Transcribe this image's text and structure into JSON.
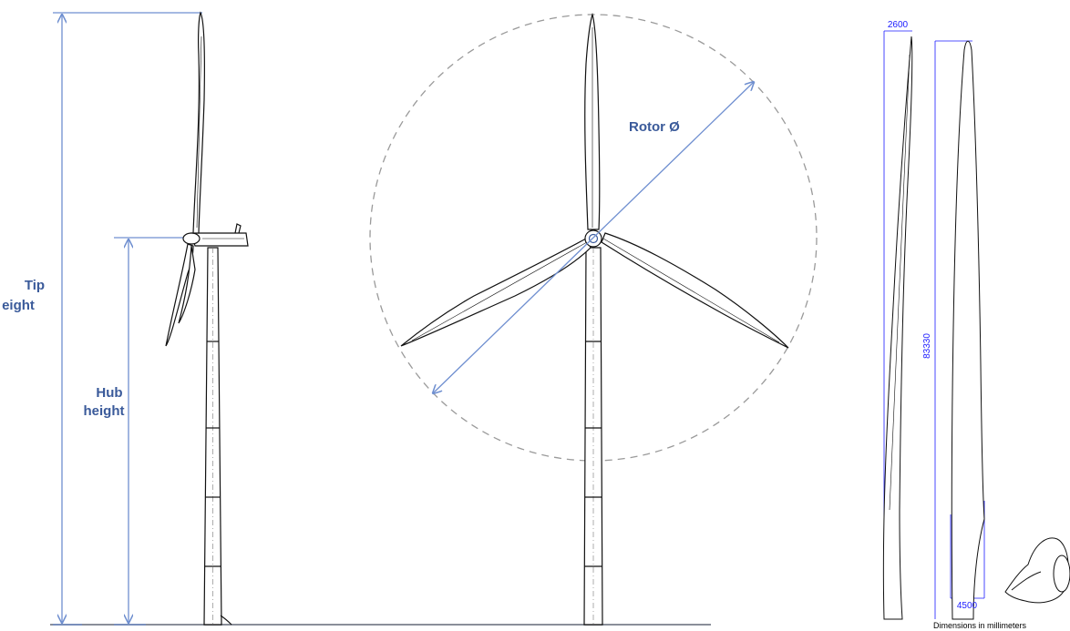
{
  "labels": {
    "tip_line1": "Tip",
    "tip_line2": "eight",
    "hub_line1": "Hub",
    "hub_line2": "height",
    "rotor": "Rotor Ø",
    "blade_root_width": "2600",
    "blade_length": "83330",
    "blade_chord": "4500",
    "dimensions_note": "Dimensions in millimeters"
  },
  "colors": {
    "dimension": "#6f8fd0",
    "dimension_text": "#3a5a9a",
    "line": "#111111",
    "ground": "#8a8f99",
    "circle": "#9a9a9a",
    "blue_dim": "#1a1aff"
  }
}
